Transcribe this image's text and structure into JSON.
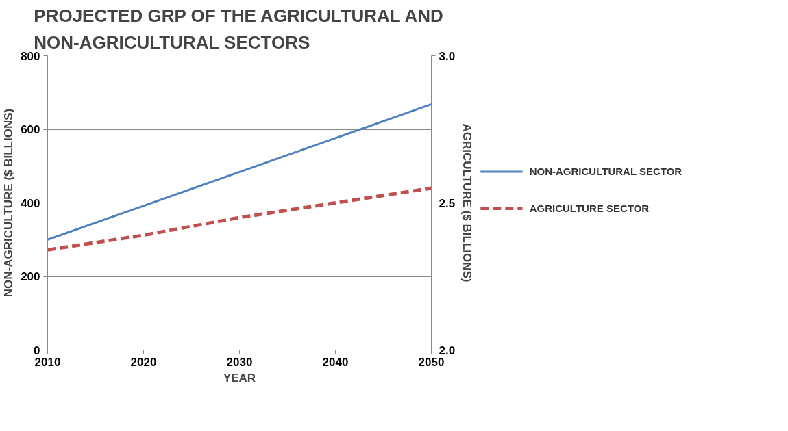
{
  "chart_data": {
    "type": "line",
    "title": "PROJECTED GRP OF THE AGRICULTURAL AND\nNON-AGRICULTURAL SECTORS",
    "xlabel": "YEAR",
    "ylabel": "NON-AGRICULTURE ($ BILLIONS)",
    "y2label": "AGRICULTURE ($ BILLIONS)",
    "x": [
      2010,
      2020,
      2030,
      2040,
      2050
    ],
    "series": [
      {
        "name": "NON-AGRICULTURAL SECTOR",
        "color": "#4f81bd",
        "values": [
          300,
          392,
          484,
          576,
          668
        ],
        "line_style": "solid"
      },
      {
        "name": "AGRICULTURE SECTOR",
        "color": "#c0504d",
        "values": [
          2.34,
          2.39,
          2.45,
          2.5,
          2.55
        ],
        "axis": "y2",
        "line_style": "dashed"
      }
    ],
    "xlim": [
      2010,
      2050
    ],
    "xticks": [
      2010,
      2020,
      2030,
      2040,
      2050
    ],
    "ylim": [
      0,
      800
    ],
    "yticks": [
      0,
      200,
      400,
      600,
      800
    ],
    "y2lim": [
      2.0,
      3.0
    ],
    "y2ticks": [
      {
        "value": 2.0,
        "label": "2.0"
      },
      {
        "value": 2.5,
        "label": "2.5"
      },
      {
        "value": 3.0,
        "label": "3.0"
      }
    ],
    "grid": "y",
    "legend": "right",
    "marker": "none"
  }
}
